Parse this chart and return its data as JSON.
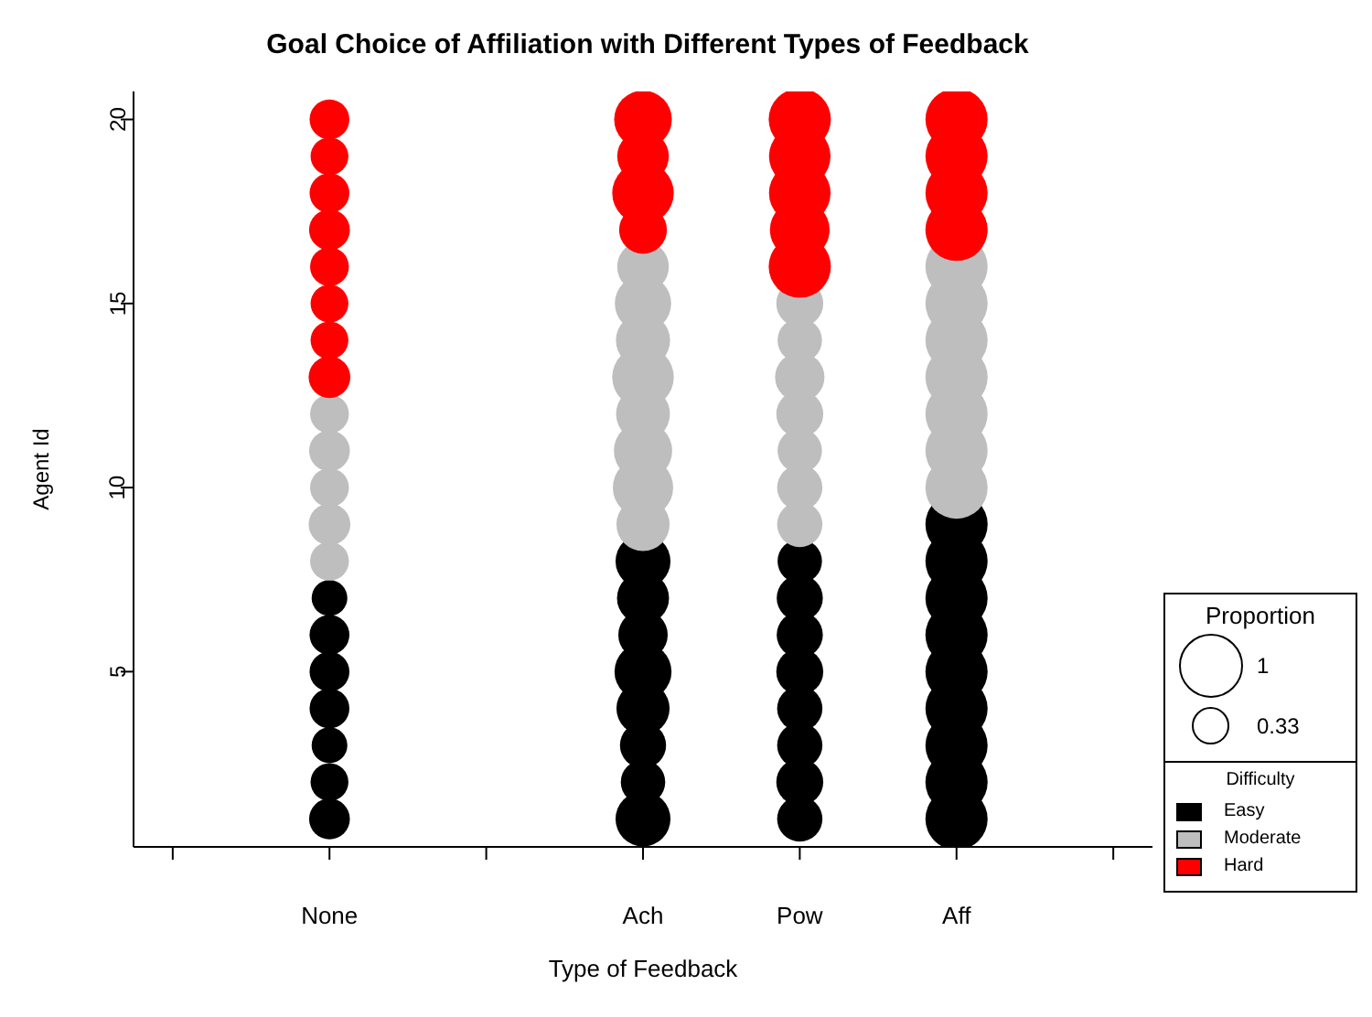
{
  "chart_data": {
    "type": "bubble",
    "title": "Goal Choice of Affiliation with Different Types of Feedback",
    "xlabel": "Type of Feedback",
    "ylabel": "Agent Id",
    "legend_title": "Difficulty",
    "annotations": [
      "Proportion"
    ],
    "categories": [
      null,
      "None",
      null,
      "Ach",
      "Pow",
      "Aff",
      null
    ],
    "ylim": [
      0.24,
      20.76
    ],
    "yticks": [
      5,
      10,
      15,
      20
    ],
    "legend": "bottom right",
    "size_legend": [
      1,
      0.33
    ],
    "series": [
      {
        "name": "Easy",
        "color": "#000000",
        "x": [
          "None",
          "None",
          "None",
          "None",
          "None",
          "None",
          "None",
          "Ach",
          "Ach",
          "Ach",
          "Ach",
          "Ach",
          "Ach",
          "Ach",
          "Ach",
          "Pow",
          "Pow",
          "Pow",
          "Pow",
          "Pow",
          "Pow",
          "Pow",
          "Pow",
          "Aff",
          "Aff",
          "Aff",
          "Aff",
          "Aff",
          "Aff",
          "Aff",
          "Aff",
          "Aff"
        ],
        "values": [
          1,
          2,
          3,
          4,
          5,
          6,
          7,
          1,
          2,
          3,
          4,
          5,
          6,
          7,
          8,
          1,
          2,
          3,
          4,
          5,
          6,
          7,
          8,
          1,
          2,
          3,
          4,
          5,
          6,
          7,
          8,
          9
        ],
        "sizes": [
          0.43,
          0.37,
          0.33,
          0.41,
          0.41,
          0.41,
          0.33,
          0.78,
          0.51,
          0.55,
          0.73,
          0.84,
          0.63,
          0.7,
          0.78,
          0.53,
          0.57,
          0.53,
          0.53,
          0.57,
          0.55,
          0.55,
          0.51,
          1,
          1,
          1,
          1,
          1,
          1,
          1,
          1,
          1
        ]
      },
      {
        "name": "Moderate",
        "color": "#bebebe",
        "x": [
          "None",
          "None",
          "None",
          "None",
          "None",
          "Ach",
          "Ach",
          "Ach",
          "Ach",
          "Ach",
          "Ach",
          "Ach",
          "Ach",
          "Pow",
          "Pow",
          "Pow",
          "Pow",
          "Pow",
          "Pow",
          "Pow",
          "Aff",
          "Aff",
          "Aff",
          "Aff",
          "Aff",
          "Aff",
          "Aff"
        ],
        "values": [
          8,
          9,
          10,
          11,
          12,
          9,
          10,
          11,
          12,
          13,
          14,
          15,
          16,
          9,
          10,
          11,
          12,
          13,
          14,
          15,
          10,
          11,
          12,
          13,
          14,
          15,
          16
        ],
        "sizes": [
          0.39,
          0.45,
          0.39,
          0.43,
          0.39,
          0.73,
          0.94,
          0.88,
          0.75,
          0.98,
          0.76,
          0.82,
          0.69,
          0.53,
          0.53,
          0.51,
          0.57,
          0.63,
          0.51,
          0.57,
          1,
          1,
          1,
          1,
          1,
          1,
          1
        ]
      },
      {
        "name": "Hard",
        "color": "#ff0000",
        "x": [
          "None",
          "None",
          "None",
          "None",
          "None",
          "None",
          "None",
          "None",
          "Ach",
          "Ach",
          "Ach",
          "Ach",
          "Pow",
          "Pow",
          "Pow",
          "Pow",
          "Pow",
          "Aff",
          "Aff",
          "Aff",
          "Aff"
        ],
        "values": [
          13,
          14,
          15,
          16,
          17,
          18,
          19,
          20,
          17,
          18,
          19,
          20,
          16,
          17,
          18,
          19,
          20,
          17,
          18,
          19,
          20
        ],
        "sizes": [
          0.45,
          0.37,
          0.37,
          0.39,
          0.43,
          0.41,
          0.37,
          0.41,
          0.59,
          0.98,
          0.69,
          0.86,
          1,
          0.92,
          0.98,
          0.98,
          1,
          1,
          1,
          1,
          1
        ]
      }
    ]
  }
}
